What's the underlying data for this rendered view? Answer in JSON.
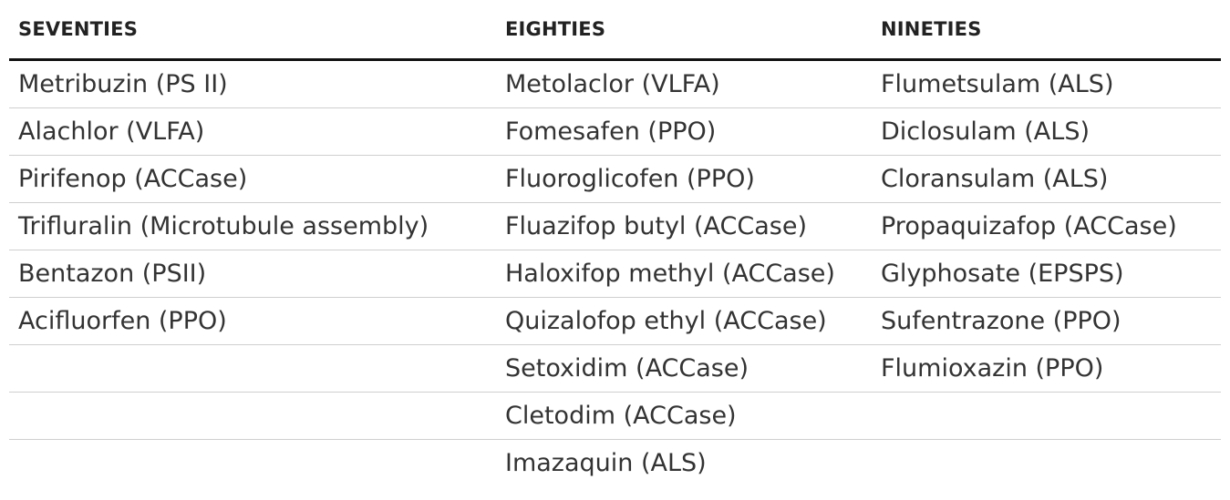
{
  "table": {
    "headers": [
      "SEVENTIES",
      "EIGHTIES",
      "NINETIES"
    ],
    "rows": [
      [
        "Metribuzin (PS II)",
        "Metolaclor (VLFA)",
        "Flumetsulam (ALS)"
      ],
      [
        "Alachlor (VLFA)",
        "Fomesafen (PPO)",
        "Diclosulam (ALS)"
      ],
      [
        "Pirifenop (ACCase)",
        "Fluoroglicofen (PPO)",
        "Cloransulam (ALS)"
      ],
      [
        "Trifluralin (Microtubule assembly)",
        "Fluazifop butyl (ACCase)",
        "Propaquizafop (ACCase)"
      ],
      [
        "Bentazon (PSII)",
        "Haloxifop methyl (ACCase)",
        "Glyphosate (EPSPS)"
      ],
      [
        "Acifluorfen (PPO)",
        "Quizalofop ethyl (ACCase)",
        "Sufentrazone (PPO)"
      ],
      [
        "",
        "Setoxidim (ACCase)",
        "Flumioxazin (PPO)"
      ],
      [
        "",
        "Cletodim (ACCase)",
        ""
      ],
      [
        "",
        "Imazaquin (ALS)",
        ""
      ]
    ]
  }
}
